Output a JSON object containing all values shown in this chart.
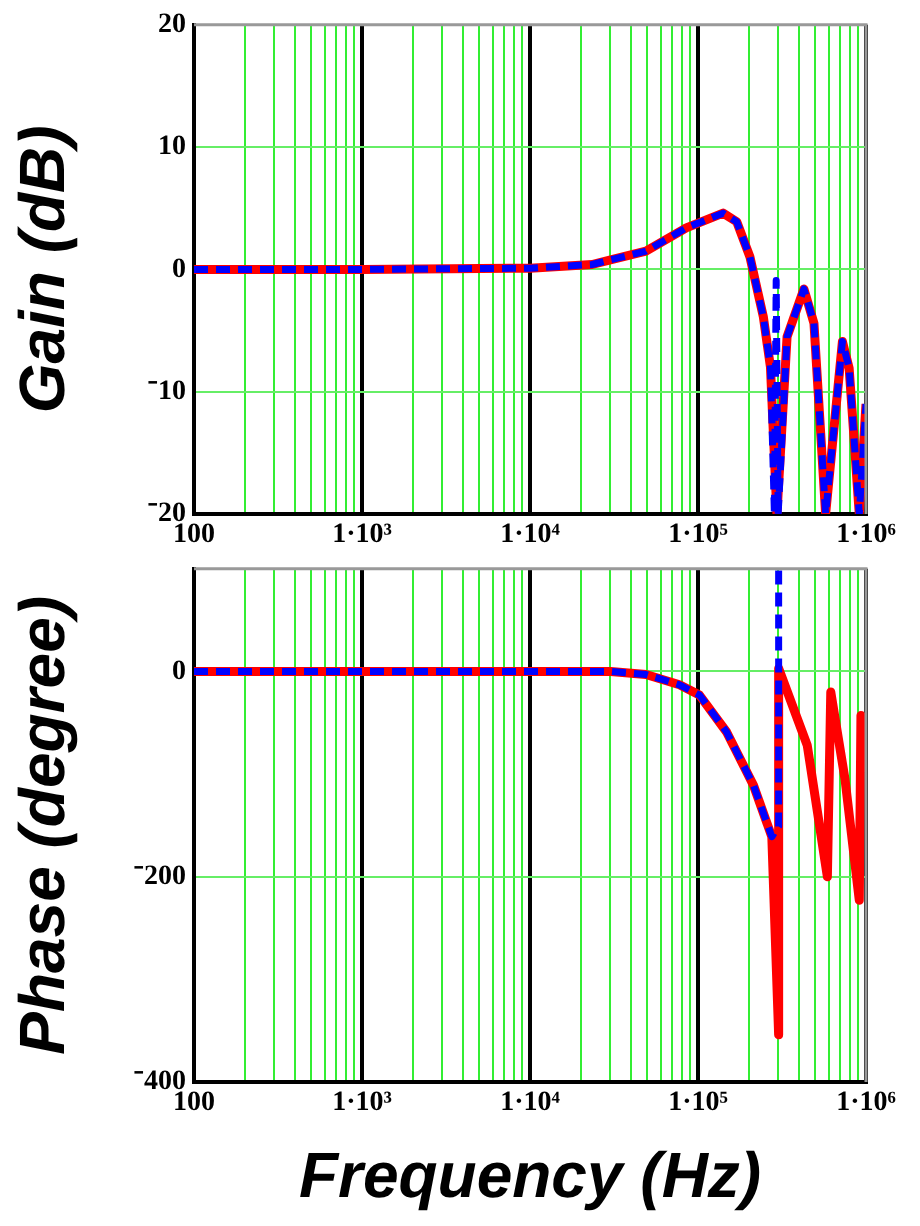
{
  "chart_data": [
    {
      "type": "line",
      "ylabel": "Gain (dB)",
      "log": "x",
      "grid": true,
      "legend": false,
      "xlim": [
        100,
        1000000
      ],
      "xticks": [
        100,
        {
          "value": 200,
          "label": null
        },
        {
          "value": 300,
          "label": null
        },
        {
          "value": 400,
          "label": null
        },
        {
          "value": 500,
          "label": null
        },
        {
          "value": 600,
          "label": null
        },
        {
          "value": 700,
          "label": null
        },
        {
          "value": 800,
          "label": null
        },
        {
          "value": 900,
          "label": null
        },
        {
          "value": 1000,
          "label": "1·10³"
        },
        {
          "value": 2000,
          "label": null
        },
        {
          "value": 3000,
          "label": null
        },
        {
          "value": 4000,
          "label": null
        },
        {
          "value": 5000,
          "label": null
        },
        {
          "value": 6000,
          "label": null
        },
        {
          "value": 7000,
          "label": null
        },
        {
          "value": 8000,
          "label": null
        },
        {
          "value": 9000,
          "label": null
        },
        {
          "value": 10000,
          "label": "1·10⁴"
        },
        {
          "value": 20000,
          "label": null
        },
        {
          "value": 30000,
          "label": null
        },
        {
          "value": 40000,
          "label": null
        },
        {
          "value": 50000,
          "label": null
        },
        {
          "value": 60000,
          "label": null
        },
        {
          "value": 70000,
          "label": null
        },
        {
          "value": 80000,
          "label": null
        },
        {
          "value": 90000,
          "label": null
        },
        {
          "value": 100000,
          "label": "1·10⁵"
        },
        {
          "value": 200000,
          "label": null
        },
        {
          "value": 300000,
          "label": null
        },
        {
          "value": 400000,
          "label": null
        },
        {
          "value": 500000,
          "label": null
        },
        {
          "value": 600000,
          "label": null
        },
        {
          "value": 700000,
          "label": null
        },
        {
          "value": 800000,
          "label": null
        },
        {
          "value": 900000,
          "label": null
        },
        {
          "value": 1000000,
          "label": "1·10⁶"
        }
      ],
      "ylim": [
        -20,
        20
      ],
      "yticks": [
        20,
        10,
        0,
        {
          "value": -10,
          "label": "⁻10"
        },
        {
          "value": -20,
          "label": "⁻20"
        }
      ],
      "series": [
        {
          "color": "#ff0000",
          "line_style": "solid",
          "x": [
            100,
            1000,
            10000,
            23400,
            49000,
            85100,
            141000,
            170000,
            204000,
            245000,
            270000,
            295000,
            339000,
            427000,
            490000,
            575000,
            724000,
            794000,
            912000,
            1000000
          ],
          "values": [
            0,
            0,
            0.1,
            0.4,
            1.5,
            3.4,
            4.6,
            3.9,
            1.0,
            -3.9,
            -8,
            -20,
            -5.5,
            -1.6,
            -4.4,
            -20,
            -5.9,
            -8.1,
            -20,
            -11
          ]
        },
        {
          "color": "#0000ff",
          "line_style": "dashed",
          "x": [
            100,
            1000,
            10000,
            23400,
            49000,
            85100,
            141000,
            170000,
            204000,
            245000,
            270000,
            285000,
            292000,
            300000,
            339000,
            427000,
            490000,
            575000,
            724000,
            794000,
            912000,
            1000000
          ],
          "values": [
            0,
            0,
            0.1,
            0.4,
            1.5,
            3.4,
            4.6,
            3.9,
            1.0,
            -3.9,
            -8,
            -20,
            -0.9,
            -20,
            -5.5,
            -1.6,
            -4.4,
            -20,
            -5.9,
            -8.1,
            -20,
            -11
          ]
        }
      ]
    },
    {
      "type": "line",
      "ylabel": "Phase (degree)",
      "xlabel": "Frequency (Hz)",
      "log": "x",
      "grid": true,
      "legend": false,
      "xlim": [
        100,
        1000000
      ],
      "xticks": [
        100,
        {
          "value": 200,
          "label": null
        },
        {
          "value": 300,
          "label": null
        },
        {
          "value": 400,
          "label": null
        },
        {
          "value": 500,
          "label": null
        },
        {
          "value": 600,
          "label": null
        },
        {
          "value": 700,
          "label": null
        },
        {
          "value": 800,
          "label": null
        },
        {
          "value": 900,
          "label": null
        },
        {
          "value": 1000,
          "label": "1·10³"
        },
        {
          "value": 2000,
          "label": null
        },
        {
          "value": 3000,
          "label": null
        },
        {
          "value": 4000,
          "label": null
        },
        {
          "value": 5000,
          "label": null
        },
        {
          "value": 6000,
          "label": null
        },
        {
          "value": 7000,
          "label": null
        },
        {
          "value": 8000,
          "label": null
        },
        {
          "value": 9000,
          "label": null
        },
        {
          "value": 10000,
          "label": "1·10⁴"
        },
        {
          "value": 20000,
          "label": null
        },
        {
          "value": 30000,
          "label": null
        },
        {
          "value": 40000,
          "label": null
        },
        {
          "value": 50000,
          "label": null
        },
        {
          "value": 60000,
          "label": null
        },
        {
          "value": 70000,
          "label": null
        },
        {
          "value": 80000,
          "label": null
        },
        {
          "value": 90000,
          "label": null
        },
        {
          "value": 100000,
          "label": "1·10⁵"
        },
        {
          "value": 200000,
          "label": null
        },
        {
          "value": 300000,
          "label": null
        },
        {
          "value": 400000,
          "label": null
        },
        {
          "value": 500000,
          "label": null
        },
        {
          "value": 600000,
          "label": null
        },
        {
          "value": 700000,
          "label": null
        },
        {
          "value": 800000,
          "label": null
        },
        {
          "value": 900000,
          "label": null
        },
        {
          "value": 1000000,
          "label": "1·10⁶"
        }
      ],
      "ylim": [
        -400,
        100
      ],
      "yticks": [
        0,
        {
          "value": -200,
          "label": "⁻200"
        },
        {
          "value": -400,
          "label": "⁻400"
        }
      ],
      "series": [
        {
          "color": "#ff0000",
          "line_style": "solid",
          "x": [
            100,
            1000,
            10000,
            30200,
            49000,
            77600,
            102000,
            148000,
            214000,
            275000,
            302000,
            302000,
            447000,
            589000,
            617000,
            750000,
            912000,
            933000,
            1000000
          ],
          "values": [
            0,
            0,
            0,
            0,
            -3,
            -13,
            -23,
            -59,
            -111,
            -161,
            -354,
            3,
            -72,
            -200,
            -20,
            -105,
            -223,
            -43,
            -98
          ]
        },
        {
          "color": "#0000ff",
          "line_style": "dashed",
          "x": [
            100,
            1000,
            10000,
            30200,
            49000,
            77600,
            102000,
            148000,
            214000,
            275000,
            302000,
            302000
          ],
          "values": [
            0,
            0,
            0,
            0,
            -3,
            -13,
            -23,
            -59,
            -111,
            -161,
            -151,
            100
          ]
        }
      ]
    }
  ]
}
